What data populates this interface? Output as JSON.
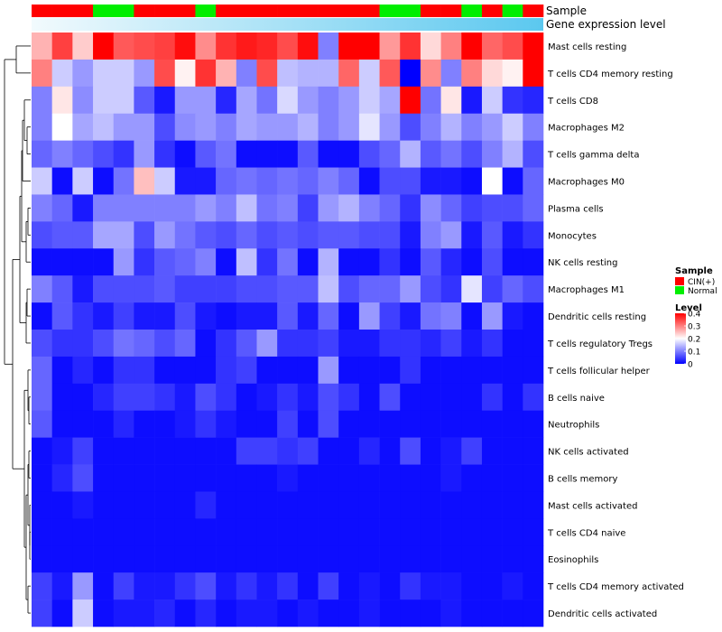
{
  "chart_data": {
    "type": "heatmap",
    "title": "",
    "annotation_tracks": [
      {
        "name": "Sample",
        "colors": {
          "CIN(+)": "#ff0000",
          "Normal": "#00ee00"
        },
        "values": [
          "CIN(+)",
          "CIN(+)",
          "CIN(+)",
          "Normal",
          "Normal",
          "CIN(+)",
          "CIN(+)",
          "CIN(+)",
          "Normal",
          "CIN(+)",
          "CIN(+)",
          "CIN(+)",
          "CIN(+)",
          "CIN(+)",
          "CIN(+)",
          "CIN(+)",
          "CIN(+)",
          "Normal",
          "Normal",
          "CIN(+)",
          "CIN(+)",
          "Normal",
          "CIN(+)",
          "Normal",
          "CIN(+)"
        ]
      },
      {
        "name": "Gene expression level",
        "gradient": [
          "#f2fafd",
          "#5bc8ef"
        ]
      }
    ],
    "rows": [
      "Mast cells resting",
      "T cells CD4 memory resting",
      "T cells CD8",
      "Macrophages M2",
      "T cells gamma delta",
      "Macrophages M0",
      "Plasma cells",
      "Monocytes",
      "NK cells resting",
      "Macrophages M1",
      "Dendritic cells resting",
      "T cells regulatory  Tregs",
      "T cells follicular helper",
      "B cells naive",
      "Neutrophils",
      "NK cells activated",
      "B cells memory",
      "Mast cells activated",
      "T cells CD4 naive",
      "Eosinophils",
      "T cells CD4 memory activated",
      "Dendritic cells activated"
    ],
    "values": [
      [
        0.26,
        0.35,
        0.24,
        0.4,
        0.33,
        0.34,
        0.35,
        0.39,
        0.29,
        0.36,
        0.38,
        0.37,
        0.34,
        0.39,
        0.1,
        0.4,
        0.4,
        0.28,
        0.36,
        0.23,
        0.3,
        0.4,
        0.32,
        0.34,
        0.4
      ],
      [
        0.3,
        0.16,
        0.12,
        0.16,
        0.16,
        0.12,
        0.34,
        0.21,
        0.36,
        0.26,
        0.1,
        0.34,
        0.15,
        0.14,
        0.14,
        0.32,
        0.16,
        0.33,
        0.0,
        0.29,
        0.1,
        0.3,
        0.23,
        0.21,
        0.4
      ],
      [
        0.1,
        0.22,
        0.11,
        0.16,
        0.16,
        0.07,
        0.02,
        0.12,
        0.12,
        0.03,
        0.13,
        0.09,
        0.17,
        0.12,
        0.1,
        0.12,
        0.16,
        0.13,
        0.4,
        0.09,
        0.22,
        0.02,
        0.16,
        0.04,
        0.03
      ],
      [
        0.1,
        0.2,
        0.13,
        0.15,
        0.12,
        0.12,
        0.06,
        0.11,
        0.12,
        0.1,
        0.13,
        0.12,
        0.12,
        0.14,
        0.1,
        0.12,
        0.18,
        0.12,
        0.06,
        0.1,
        0.14,
        0.1,
        0.12,
        0.16,
        0.1
      ],
      [
        0.08,
        0.1,
        0.08,
        0.06,
        0.04,
        0.12,
        0.04,
        0.01,
        0.07,
        0.09,
        0.01,
        0.01,
        0.01,
        0.07,
        0.01,
        0.01,
        0.06,
        0.08,
        0.14,
        0.07,
        0.09,
        0.06,
        0.1,
        0.14,
        0.06
      ],
      [
        0.16,
        0.01,
        0.16,
        0.01,
        0.09,
        0.25,
        0.16,
        0.02,
        0.02,
        0.08,
        0.09,
        0.08,
        0.09,
        0.08,
        0.1,
        0.08,
        0.01,
        0.06,
        0.06,
        0.02,
        0.02,
        0.01,
        0.2,
        0.01,
        0.08
      ],
      [
        0.1,
        0.08,
        0.02,
        0.1,
        0.1,
        0.1,
        0.1,
        0.1,
        0.12,
        0.1,
        0.15,
        0.09,
        0.1,
        0.05,
        0.12,
        0.14,
        0.1,
        0.08,
        0.04,
        0.11,
        0.08,
        0.05,
        0.06,
        0.06,
        0.08
      ],
      [
        0.06,
        0.07,
        0.07,
        0.13,
        0.13,
        0.06,
        0.12,
        0.09,
        0.07,
        0.06,
        0.08,
        0.06,
        0.07,
        0.06,
        0.07,
        0.07,
        0.06,
        0.06,
        0.02,
        0.1,
        0.12,
        0.02,
        0.07,
        0.02,
        0.04
      ],
      [
        0.01,
        0.01,
        0.01,
        0.01,
        0.12,
        0.04,
        0.07,
        0.08,
        0.1,
        0.01,
        0.15,
        0.04,
        0.09,
        0.01,
        0.14,
        0.01,
        0.01,
        0.04,
        0.01,
        0.07,
        0.03,
        0.01,
        0.06,
        0.01,
        0.01
      ],
      [
        0.1,
        0.07,
        0.02,
        0.06,
        0.06,
        0.06,
        0.07,
        0.05,
        0.05,
        0.05,
        0.06,
        0.06,
        0.07,
        0.07,
        0.15,
        0.06,
        0.08,
        0.08,
        0.12,
        0.06,
        0.04,
        0.18,
        0.05,
        0.08,
        0.06
      ],
      [
        0.01,
        0.07,
        0.04,
        0.02,
        0.05,
        0.02,
        0.02,
        0.06,
        0.02,
        0.01,
        0.02,
        0.02,
        0.07,
        0.02,
        0.08,
        0.01,
        0.12,
        0.05,
        0.02,
        0.09,
        0.1,
        0.01,
        0.12,
        0.02,
        0.01
      ],
      [
        0.06,
        0.04,
        0.04,
        0.06,
        0.09,
        0.08,
        0.06,
        0.08,
        0.01,
        0.04,
        0.07,
        0.12,
        0.04,
        0.04,
        0.05,
        0.02,
        0.02,
        0.04,
        0.04,
        0.03,
        0.05,
        0.02,
        0.04,
        0.01,
        0.01
      ],
      [
        0.08,
        0.01,
        0.03,
        0.01,
        0.04,
        0.04,
        0.01,
        0.01,
        0.01,
        0.04,
        0.05,
        0.01,
        0.01,
        0.01,
        0.12,
        0.01,
        0.01,
        0.01,
        0.04,
        0.01,
        0.01,
        0.01,
        0.01,
        0.01,
        0.01
      ],
      [
        0.08,
        0.01,
        0.01,
        0.03,
        0.05,
        0.05,
        0.04,
        0.02,
        0.06,
        0.04,
        0.01,
        0.02,
        0.04,
        0.02,
        0.06,
        0.04,
        0.01,
        0.06,
        0.01,
        0.01,
        0.01,
        0.01,
        0.04,
        0.01,
        0.04
      ],
      [
        0.07,
        0.01,
        0.01,
        0.01,
        0.03,
        0.01,
        0.01,
        0.02,
        0.04,
        0.02,
        0.01,
        0.01,
        0.05,
        0.01,
        0.06,
        0.01,
        0.01,
        0.01,
        0.01,
        0.01,
        0.01,
        0.01,
        0.01,
        0.01,
        0.01
      ],
      [
        0.01,
        0.02,
        0.05,
        0.01,
        0.01,
        0.01,
        0.01,
        0.01,
        0.01,
        0.01,
        0.05,
        0.05,
        0.04,
        0.05,
        0.01,
        0.01,
        0.03,
        0.01,
        0.06,
        0.01,
        0.02,
        0.05,
        0.01,
        0.01,
        0.01
      ],
      [
        0.01,
        0.03,
        0.06,
        0.01,
        0.01,
        0.01,
        0.01,
        0.01,
        0.01,
        0.01,
        0.01,
        0.01,
        0.02,
        0.01,
        0.01,
        0.01,
        0.01,
        0.01,
        0.01,
        0.01,
        0.02,
        0.01,
        0.01,
        0.01,
        0.01
      ],
      [
        0.01,
        0.01,
        0.02,
        0.01,
        0.01,
        0.01,
        0.01,
        0.01,
        0.03,
        0.01,
        0.01,
        0.01,
        0.01,
        0.01,
        0.01,
        0.01,
        0.01,
        0.01,
        0.01,
        0.01,
        0.01,
        0.01,
        0.01,
        0.01,
        0.01
      ],
      [
        0.01,
        0.01,
        0.01,
        0.01,
        0.01,
        0.01,
        0.01,
        0.01,
        0.01,
        0.01,
        0.01,
        0.01,
        0.01,
        0.01,
        0.01,
        0.01,
        0.01,
        0.01,
        0.01,
        0.01,
        0.01,
        0.01,
        0.01,
        0.01,
        0.01
      ],
      [
        0.01,
        0.01,
        0.01,
        0.01,
        0.01,
        0.01,
        0.01,
        0.01,
        0.01,
        0.01,
        0.01,
        0.01,
        0.01,
        0.01,
        0.01,
        0.01,
        0.01,
        0.01,
        0.01,
        0.01,
        0.01,
        0.01,
        0.01,
        0.01,
        0.01
      ],
      [
        0.05,
        0.02,
        0.12,
        0.01,
        0.05,
        0.02,
        0.02,
        0.04,
        0.06,
        0.02,
        0.04,
        0.02,
        0.04,
        0.01,
        0.05,
        0.01,
        0.02,
        0.01,
        0.04,
        0.02,
        0.02,
        0.01,
        0.01,
        0.02,
        0.01
      ],
      [
        0.05,
        0.01,
        0.16,
        0.01,
        0.02,
        0.02,
        0.03,
        0.01,
        0.03,
        0.01,
        0.02,
        0.02,
        0.01,
        0.02,
        0.01,
        0.01,
        0.02,
        0.01,
        0.01,
        0.01,
        0.02,
        0.01,
        0.01,
        0.01,
        0.01
      ]
    ],
    "color_scale": {
      "min": 0,
      "mid": 0.2,
      "max": 0.4,
      "low": "#0000ff",
      "midcolor": "#ffffff",
      "high": "#ff0000"
    },
    "legends": {
      "sample": {
        "title": "Sample",
        "entries": [
          {
            "label": "CIN(+)",
            "color": "#ff0000"
          },
          {
            "label": "Normal",
            "color": "#00ee00"
          }
        ]
      },
      "level": {
        "title": "Level",
        "ticks": [
          {
            "value": 0.4,
            "label": "0.4"
          },
          {
            "value": 0.3,
            "label": "0.3"
          },
          {
            "value": 0.2,
            "label": "0.2"
          },
          {
            "value": 0.1,
            "label": "0.1"
          },
          {
            "value": 0,
            "label": "0"
          }
        ]
      }
    }
  }
}
